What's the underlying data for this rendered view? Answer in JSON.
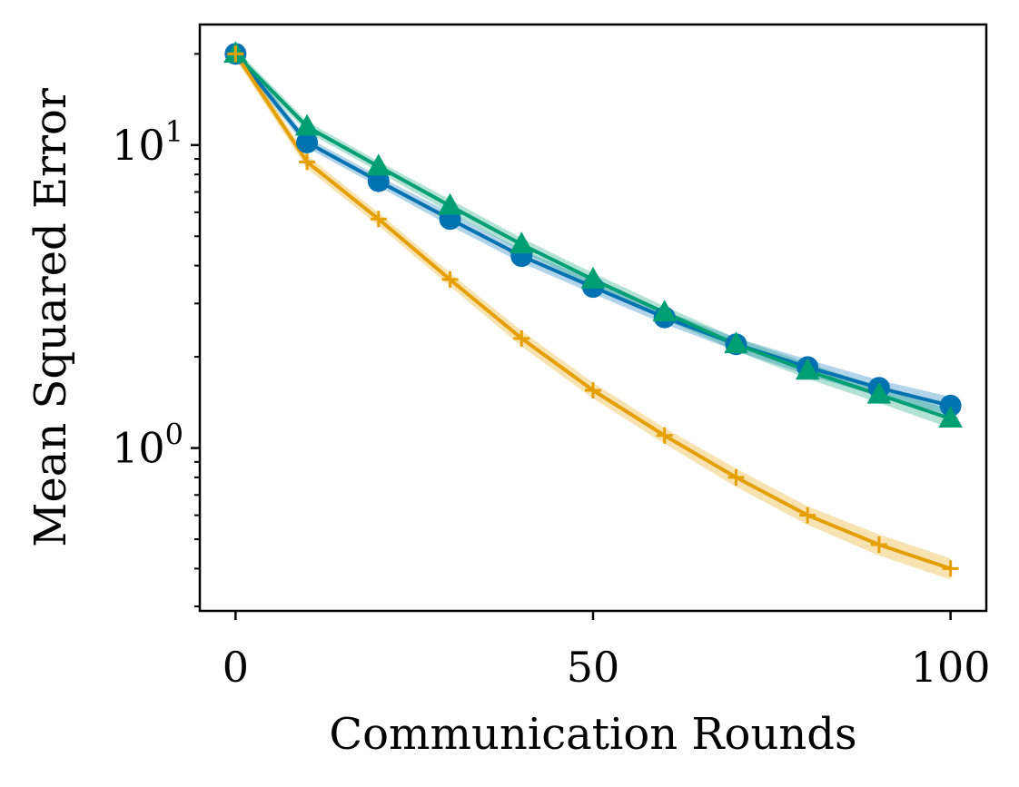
{
  "chart_data": {
    "type": "line",
    "title": "",
    "xlabel": "Communication Rounds",
    "ylabel": "Mean Squared Error",
    "yscale": "log",
    "xlim": [
      -5,
      105
    ],
    "ylim": [
      0.29,
      25
    ],
    "x": [
      0,
      10,
      20,
      30,
      40,
      50,
      60,
      70,
      80,
      90,
      100
    ],
    "xticks": [
      0,
      50,
      100
    ],
    "xtick_labels": [
      "0",
      "50",
      "100"
    ],
    "yticks": [
      1,
      10
    ],
    "ytick_labels": [
      {
        "base": "10",
        "exp": "0"
      },
      {
        "base": "10",
        "exp": "1"
      }
    ],
    "legend": "none",
    "grid": false,
    "series": [
      {
        "name": "series-blue",
        "color": "#0072B2",
        "marker": "circle",
        "values": [
          20,
          10.2,
          7.6,
          5.7,
          4.3,
          3.4,
          2.7,
          2.2,
          1.85,
          1.58,
          1.38
        ],
        "band": [
          0.04,
          0.04,
          0.04,
          0.05,
          0.05,
          0.05,
          0.05,
          0.05,
          0.06,
          0.06,
          0.07
        ]
      },
      {
        "name": "series-green",
        "color": "#009E73",
        "marker": "triangle",
        "values": [
          20,
          11.5,
          8.5,
          6.3,
          4.7,
          3.6,
          2.8,
          2.2,
          1.8,
          1.5,
          1.25
        ],
        "band": [
          0.04,
          0.04,
          0.04,
          0.05,
          0.05,
          0.05,
          0.05,
          0.05,
          0.06,
          0.06,
          0.07
        ]
      },
      {
        "name": "series-orange",
        "color": "#E69F00",
        "marker": "plus",
        "values": [
          20,
          8.8,
          5.7,
          3.6,
          2.3,
          1.55,
          1.1,
          0.8,
          0.6,
          0.48,
          0.4
        ],
        "band": [
          0.04,
          0.05,
          0.05,
          0.05,
          0.06,
          0.06,
          0.06,
          0.07,
          0.07,
          0.08,
          0.08
        ]
      }
    ]
  }
}
